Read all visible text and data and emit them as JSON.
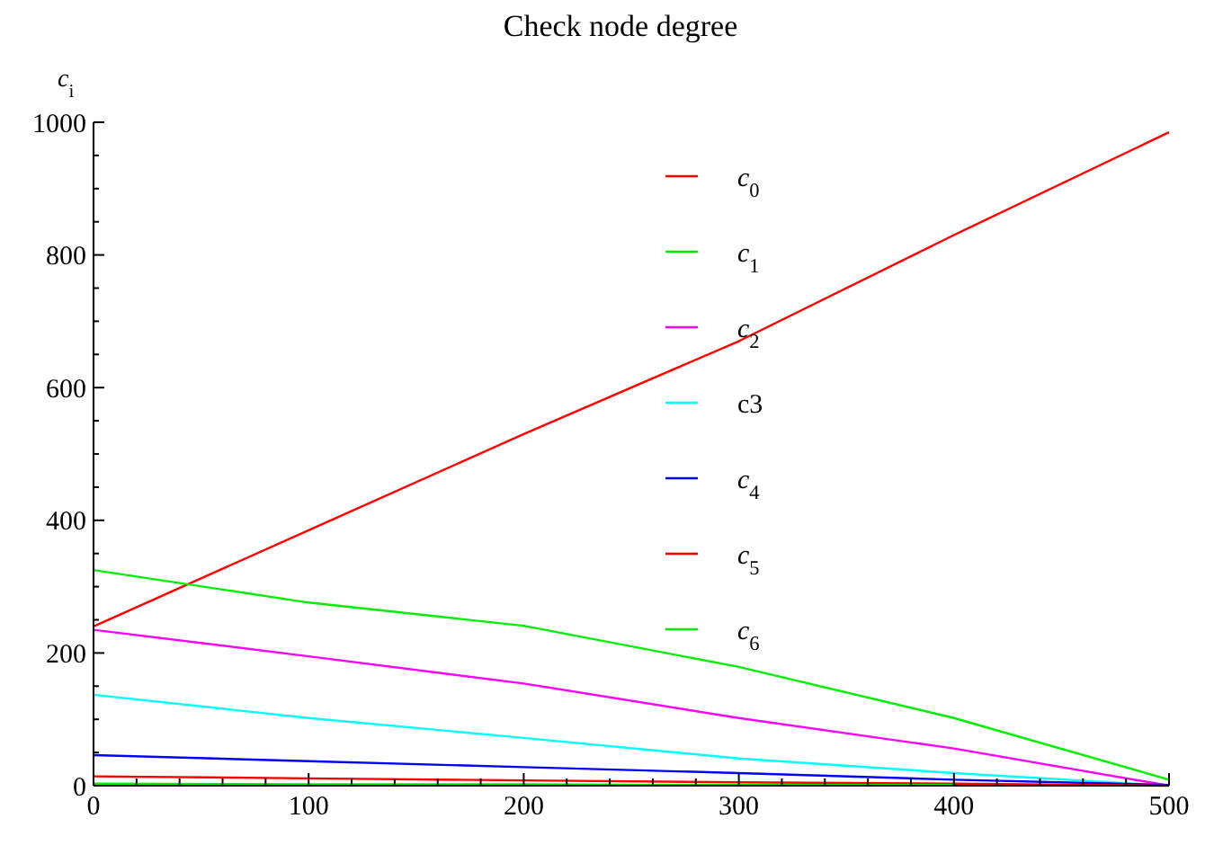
{
  "chart_data": {
    "type": "line",
    "title": "Check node degree",
    "ylabel": "c$_{i}$",
    "x": [
      0,
      100,
      200,
      300,
      400,
      500
    ],
    "xlim": [
      0,
      500
    ],
    "ylim": [
      0,
      1000
    ],
    "xticks": [
      0,
      {
        "value": 20,
        "label": null
      },
      {
        "value": 40,
        "label": null
      },
      {
        "value": 60,
        "label": null
      },
      {
        "value": 80,
        "label": null
      },
      100,
      {
        "value": 120,
        "label": null
      },
      {
        "value": 140,
        "label": null
      },
      {
        "value": 160,
        "label": null
      },
      {
        "value": 180,
        "label": null
      },
      200,
      {
        "value": 220,
        "label": null
      },
      {
        "value": 240,
        "label": null
      },
      {
        "value": 260,
        "label": null
      },
      {
        "value": 280,
        "label": null
      },
      300,
      {
        "value": 320,
        "label": null
      },
      {
        "value": 340,
        "label": null
      },
      {
        "value": 360,
        "label": null
      },
      {
        "value": 380,
        "label": null
      },
      400,
      {
        "value": 420,
        "label": null
      },
      {
        "value": 440,
        "label": null
      },
      {
        "value": 460,
        "label": null
      },
      {
        "value": 480,
        "label": null
      },
      500
    ],
    "yticks": [
      0,
      {
        "value": 50,
        "label": null
      },
      {
        "value": 100,
        "label": null
      },
      {
        "value": 150,
        "label": null
      },
      200,
      {
        "value": 250,
        "label": null
      },
      {
        "value": 300,
        "label": null
      },
      {
        "value": 350,
        "label": null
      },
      400,
      {
        "value": 450,
        "label": null
      },
      {
        "value": 500,
        "label": null
      },
      {
        "value": 550,
        "label": null
      },
      600,
      {
        "value": 650,
        "label": null
      },
      {
        "value": 700,
        "label": null
      },
      {
        "value": 750,
        "label": null
      },
      800,
      {
        "value": 850,
        "label": null
      },
      {
        "value": 900,
        "label": null
      },
      {
        "value": 950,
        "label": null
      },
      1000
    ],
    "grid": false,
    "legend": "top",
    "marker": "none",
    "line_style": "solid",
    "series": [
      {
        "name": "c$_{0}$",
        "color": "#ff0000",
        "values": [
          240,
          385,
          530,
          670,
          830,
          985
        ]
      },
      {
        "name": "c$_{1}$",
        "color": "#00ee00",
        "values": [
          325,
          276,
          241,
          179,
          102,
          9
        ]
      },
      {
        "name": "c$_{2}$",
        "color": "#ff00ff",
        "values": [
          235,
          195,
          154,
          102,
          56,
          0
        ]
      },
      {
        "name": "c3",
        "color": "#00ffff",
        "values": [
          137,
          102,
          72,
          41,
          19,
          0
        ]
      },
      {
        "name": "c$_{4}$",
        "color": "#0000ff",
        "values": [
          46,
          37,
          28,
          19,
          9,
          1
        ]
      },
      {
        "name": "c$_{5}$",
        "color": "#ff0000",
        "values": [
          14,
          11,
          8,
          5,
          3,
          0
        ]
      },
      {
        "name": "c$_{6}$",
        "color": "#00ee00",
        "values": [
          3,
          2,
          2,
          1,
          1,
          null
        ]
      }
    ]
  }
}
